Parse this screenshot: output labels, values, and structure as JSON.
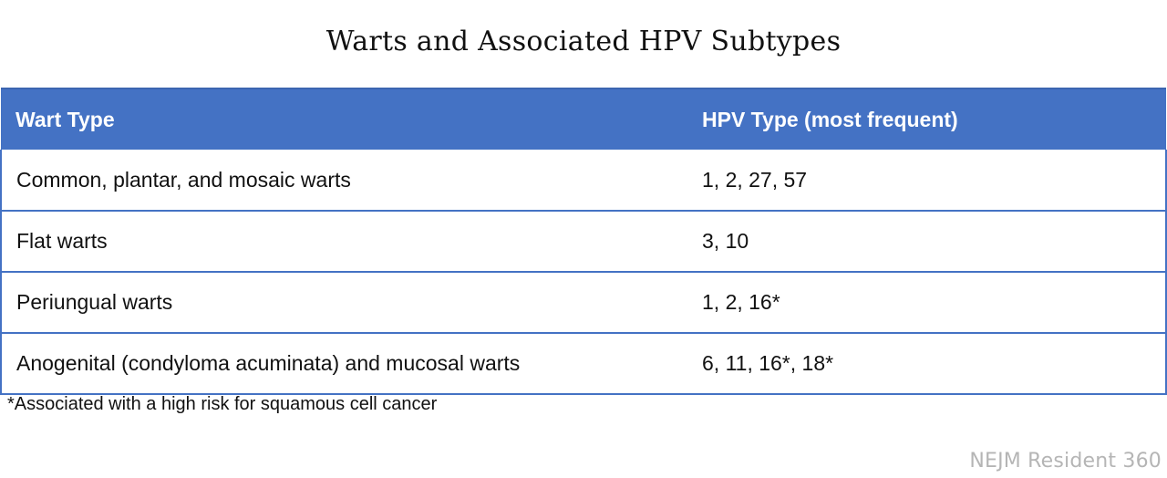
{
  "title": "Warts and Associated HPV Subtypes",
  "table": {
    "headers": [
      "Wart Type",
      "HPV Type (most frequent)"
    ],
    "rows": [
      [
        "Common, plantar, and mosaic warts",
        "1, 2, 27, 57"
      ],
      [
        "Flat warts",
        "3, 10"
      ],
      [
        "Periungual warts",
        "1, 2, 16*"
      ],
      [
        "Anogenital (condyloma acuminata) and mucosal warts",
        "6, 11, 16*, 18*"
      ]
    ]
  },
  "footnote": "*Associated with a high risk for squamous cell cancer",
  "brand": "NEJM Resident 360",
  "colors": {
    "header_bg": "#4472c4",
    "border": "#4472c4",
    "brand_text": "#b5b5b5"
  }
}
